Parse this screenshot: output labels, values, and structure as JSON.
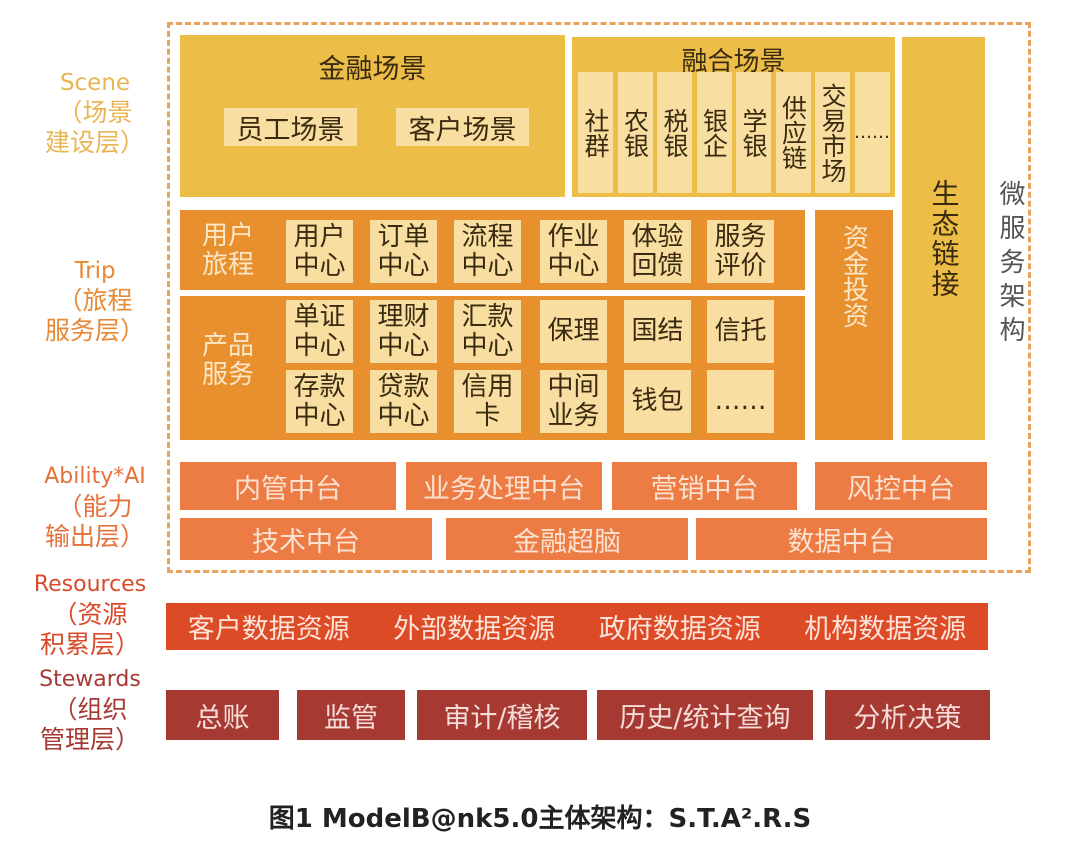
{
  "layers": {
    "scene": {
      "en": "Scene",
      "zh1": "（场景",
      "zh2": "建设层）",
      "color": "#e9b552"
    },
    "trip": {
      "en": "Trip",
      "zh1": "（旅程",
      "zh2": "服务层）",
      "color": "#e88a35"
    },
    "ability": {
      "en": "Ability*AI",
      "zh1": "（能力",
      "zh2": "输出层）",
      "color": "#e6713a"
    },
    "resources": {
      "en": "Resources",
      "zh1": "（资源",
      "zh2": "积累层）",
      "color": "#d84a2a"
    },
    "stewards": {
      "en": "Stewards",
      "zh1": "（组织",
      "zh2": "管理层）",
      "color": "#a63a33"
    }
  },
  "scene": {
    "finance": {
      "title": "金融场景",
      "items": [
        "员工场景",
        "客户场景"
      ]
    },
    "fusion": {
      "title": "融合场景",
      "items": [
        "社群",
        "农银",
        "税银",
        "银企",
        "学银",
        "供应链",
        "交易市场",
        "……"
      ]
    },
    "eco": "生态链接"
  },
  "microservice": "微服务架构",
  "trip": {
    "user_journey": {
      "label": "用户旅程",
      "items": [
        [
          "用户",
          "中心"
        ],
        [
          "订单",
          "中心"
        ],
        [
          "流程",
          "中心"
        ],
        [
          "作业",
          "中心"
        ],
        [
          "体验",
          "回馈"
        ],
        [
          "服务",
          "评价"
        ]
      ]
    },
    "product": {
      "label": "产品服务",
      "row1": [
        [
          "单证",
          "中心"
        ],
        [
          "理财",
          "中心"
        ],
        [
          "汇款",
          "中心"
        ],
        [
          "保理",
          ""
        ],
        [
          "国结",
          ""
        ],
        [
          "信托",
          ""
        ]
      ],
      "row2": [
        [
          "存款",
          "中心"
        ],
        [
          "贷款",
          "中心"
        ],
        [
          "信用",
          "卡"
        ],
        [
          "中间",
          "业务"
        ],
        [
          "钱包",
          ""
        ],
        [
          "……",
          ""
        ]
      ]
    },
    "capital": "资金投资"
  },
  "ability": {
    "row1": [
      "内管中台",
      "业务处理中台",
      "营销中台",
      "风控中台"
    ],
    "row2": [
      "技术中台",
      "金融超脑",
      "数据中台"
    ]
  },
  "resources": [
    "客户数据资源",
    "外部数据资源",
    "政府数据资源",
    "机构数据资源"
  ],
  "stewards": [
    "总账",
    "监管",
    "审计/稽核",
    "历史/统计查询",
    "分析决策"
  ],
  "caption": "图1 ModelB@nk5.0主体架构：S.T.A².R.S"
}
